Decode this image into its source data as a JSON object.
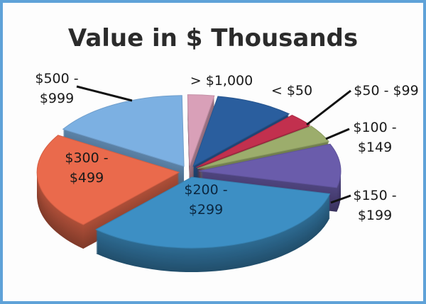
{
  "chart_data": {
    "type": "pie",
    "title": "Value in $ Thousands",
    "categories": [
      "< $50",
      "$50 - $99",
      "$100 - $149",
      "$150 - $199",
      "$200 - $299",
      "$300 - $499",
      "$500 - $999",
      "> $1,000"
    ],
    "values": [
      9,
      3,
      4,
      10,
      33,
      22,
      16,
      3
    ],
    "colors": [
      "#2a5e9e",
      "#c2304e",
      "#9cad6c",
      "#6a5cab",
      "#3d8fc4",
      "#ea6a4c",
      "#7cb0e2",
      "#d9a0b8"
    ]
  }
}
